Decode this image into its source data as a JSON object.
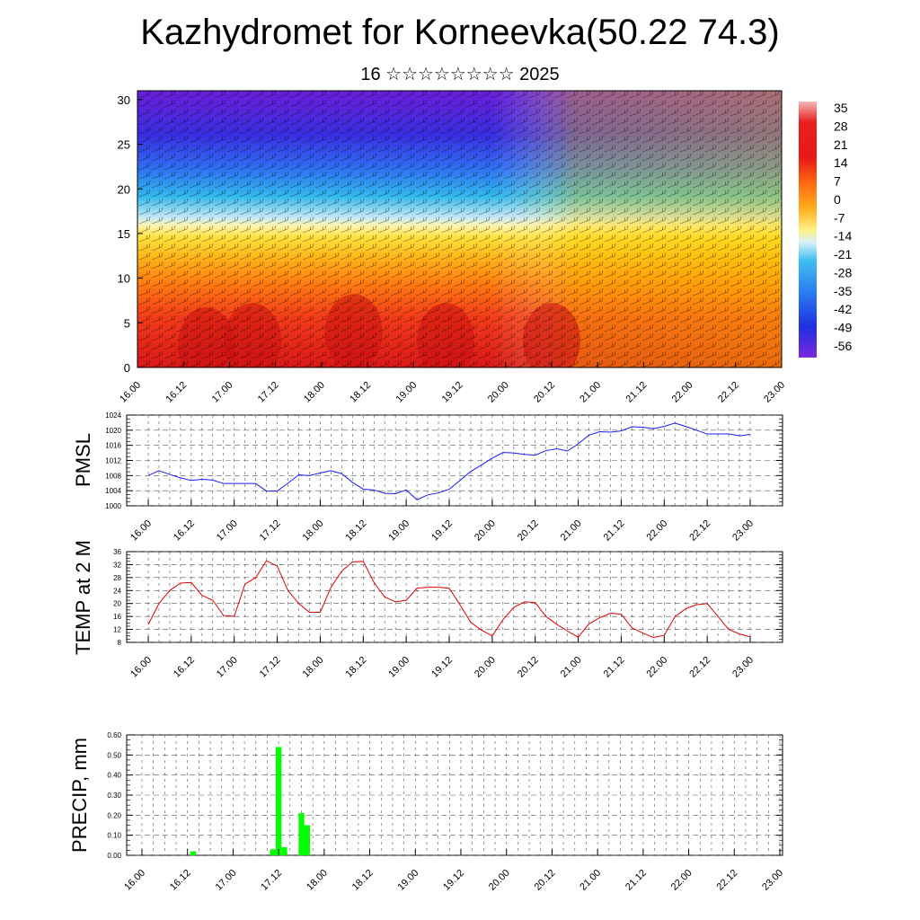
{
  "title": "Kazhydromet for Korneevka(50.22 74.3)",
  "subtitle": "16 ☆☆☆☆☆☆☆☆ 2025",
  "x_labels": [
    "16.00",
    "16.12",
    "17.00",
    "17.12",
    "18.00",
    "18.12",
    "19.00",
    "19.12",
    "20.00",
    "20.12",
    "21.00",
    "21.12",
    "22.00",
    "22.12",
    "23.00"
  ],
  "colors": {
    "pmsl_line": "#1a1aff",
    "temp_line": "#e00000",
    "precip_bar": "#00ff00"
  },
  "chart_data": [
    {
      "type": "heatmap",
      "title": "",
      "xlabel": "",
      "ylabel": "",
      "yticks": [
        "0",
        "5",
        "10",
        "15",
        "20",
        "25",
        "30"
      ],
      "ylim": [
        0,
        31
      ],
      "colorbar_labels": [
        "35",
        "28",
        "21",
        "14",
        "7",
        "0",
        "-7",
        "-14",
        "-21",
        "-28",
        "-35",
        "-42",
        "-49",
        "-56"
      ],
      "overlay": "wind barbs",
      "warm_cores": [
        {
          "x": 1.5,
          "y": 2.5
        },
        {
          "x": 2.5,
          "y": 3.0
        },
        {
          "x": 4.7,
          "y": 4.0
        },
        {
          "x": 6.7,
          "y": 3.0
        },
        {
          "x": 9.0,
          "y": 3.0
        }
      ]
    },
    {
      "type": "line",
      "ylabel": "PMSL",
      "ylim": [
        1000,
        1024
      ],
      "yticks": [
        "1000",
        "1004",
        "1008",
        "1012",
        "1016",
        "1020",
        "1024"
      ],
      "x_step": 0.25,
      "series": [
        {
          "values": [
            1008,
            1009.3,
            1008.3,
            1007.4,
            1006.7,
            1007,
            1006.8,
            1005.9,
            1005.9,
            1005.9,
            1005.9,
            1003.9,
            1003.9,
            1006,
            1008.2,
            1008,
            1008.7,
            1009.3,
            1008.5,
            1006.2,
            1004.4,
            1004.2,
            1003.3,
            1003.2,
            1004.2,
            1001.6,
            1002.9,
            1003.4,
            1004.4,
            1006.7,
            1009.1,
            1010.8,
            1012.6,
            1014.1,
            1014.0,
            1013.6,
            1013.4,
            1014.6,
            1015.1,
            1014.5,
            1016.4,
            1018.7,
            1019.6,
            1019.5,
            1019.8,
            1020.9,
            1020.8,
            1020.4,
            1021.0,
            1021.9,
            1021.0,
            1020.0,
            1019.0,
            1019.0,
            1019.0,
            1018.5,
            1018.9
          ]
        }
      ]
    },
    {
      "type": "line",
      "ylabel": "TEMP at 2 M",
      "ylim": [
        8,
        36
      ],
      "yticks": [
        "8",
        "12",
        "16",
        "20",
        "24",
        "28",
        "32",
        "36"
      ],
      "x_step": 0.25,
      "series": [
        {
          "values": [
            13.5,
            20,
            24,
            26.3,
            26.5,
            22.5,
            21,
            16.3,
            16,
            26,
            28,
            33.2,
            31.5,
            24,
            20,
            17.3,
            17.3,
            25,
            30,
            32.8,
            33,
            26.5,
            22,
            20.5,
            21,
            24.7,
            25,
            25,
            24.7,
            19.6,
            14.2,
            11.8,
            10,
            15,
            18.8,
            20.5,
            20.3,
            16,
            13.6,
            11.5,
            9.6,
            13.7,
            15.6,
            17,
            16.7,
            12.5,
            10.9,
            9.5,
            10.2,
            15.9,
            18.4,
            19.6,
            20,
            16,
            12,
            10.6,
            9.7
          ]
        }
      ]
    },
    {
      "type": "bar",
      "ylabel": "PRECIP, mm",
      "ylim": [
        0,
        0.6
      ],
      "yticks": [
        "0.00",
        "0.10",
        "0.20",
        "0.30",
        "0.40",
        "0.50",
        "0.60"
      ],
      "bars": [
        {
          "x": 1.125,
          "value": 0.02
        },
        {
          "x": 2.875,
          "value": 0.03
        },
        {
          "x": 3.0,
          "value": 0.54
        },
        {
          "x": 3.125,
          "value": 0.04
        },
        {
          "x": 3.5,
          "value": 0.21
        },
        {
          "x": 3.625,
          "value": 0.15
        }
      ]
    }
  ]
}
